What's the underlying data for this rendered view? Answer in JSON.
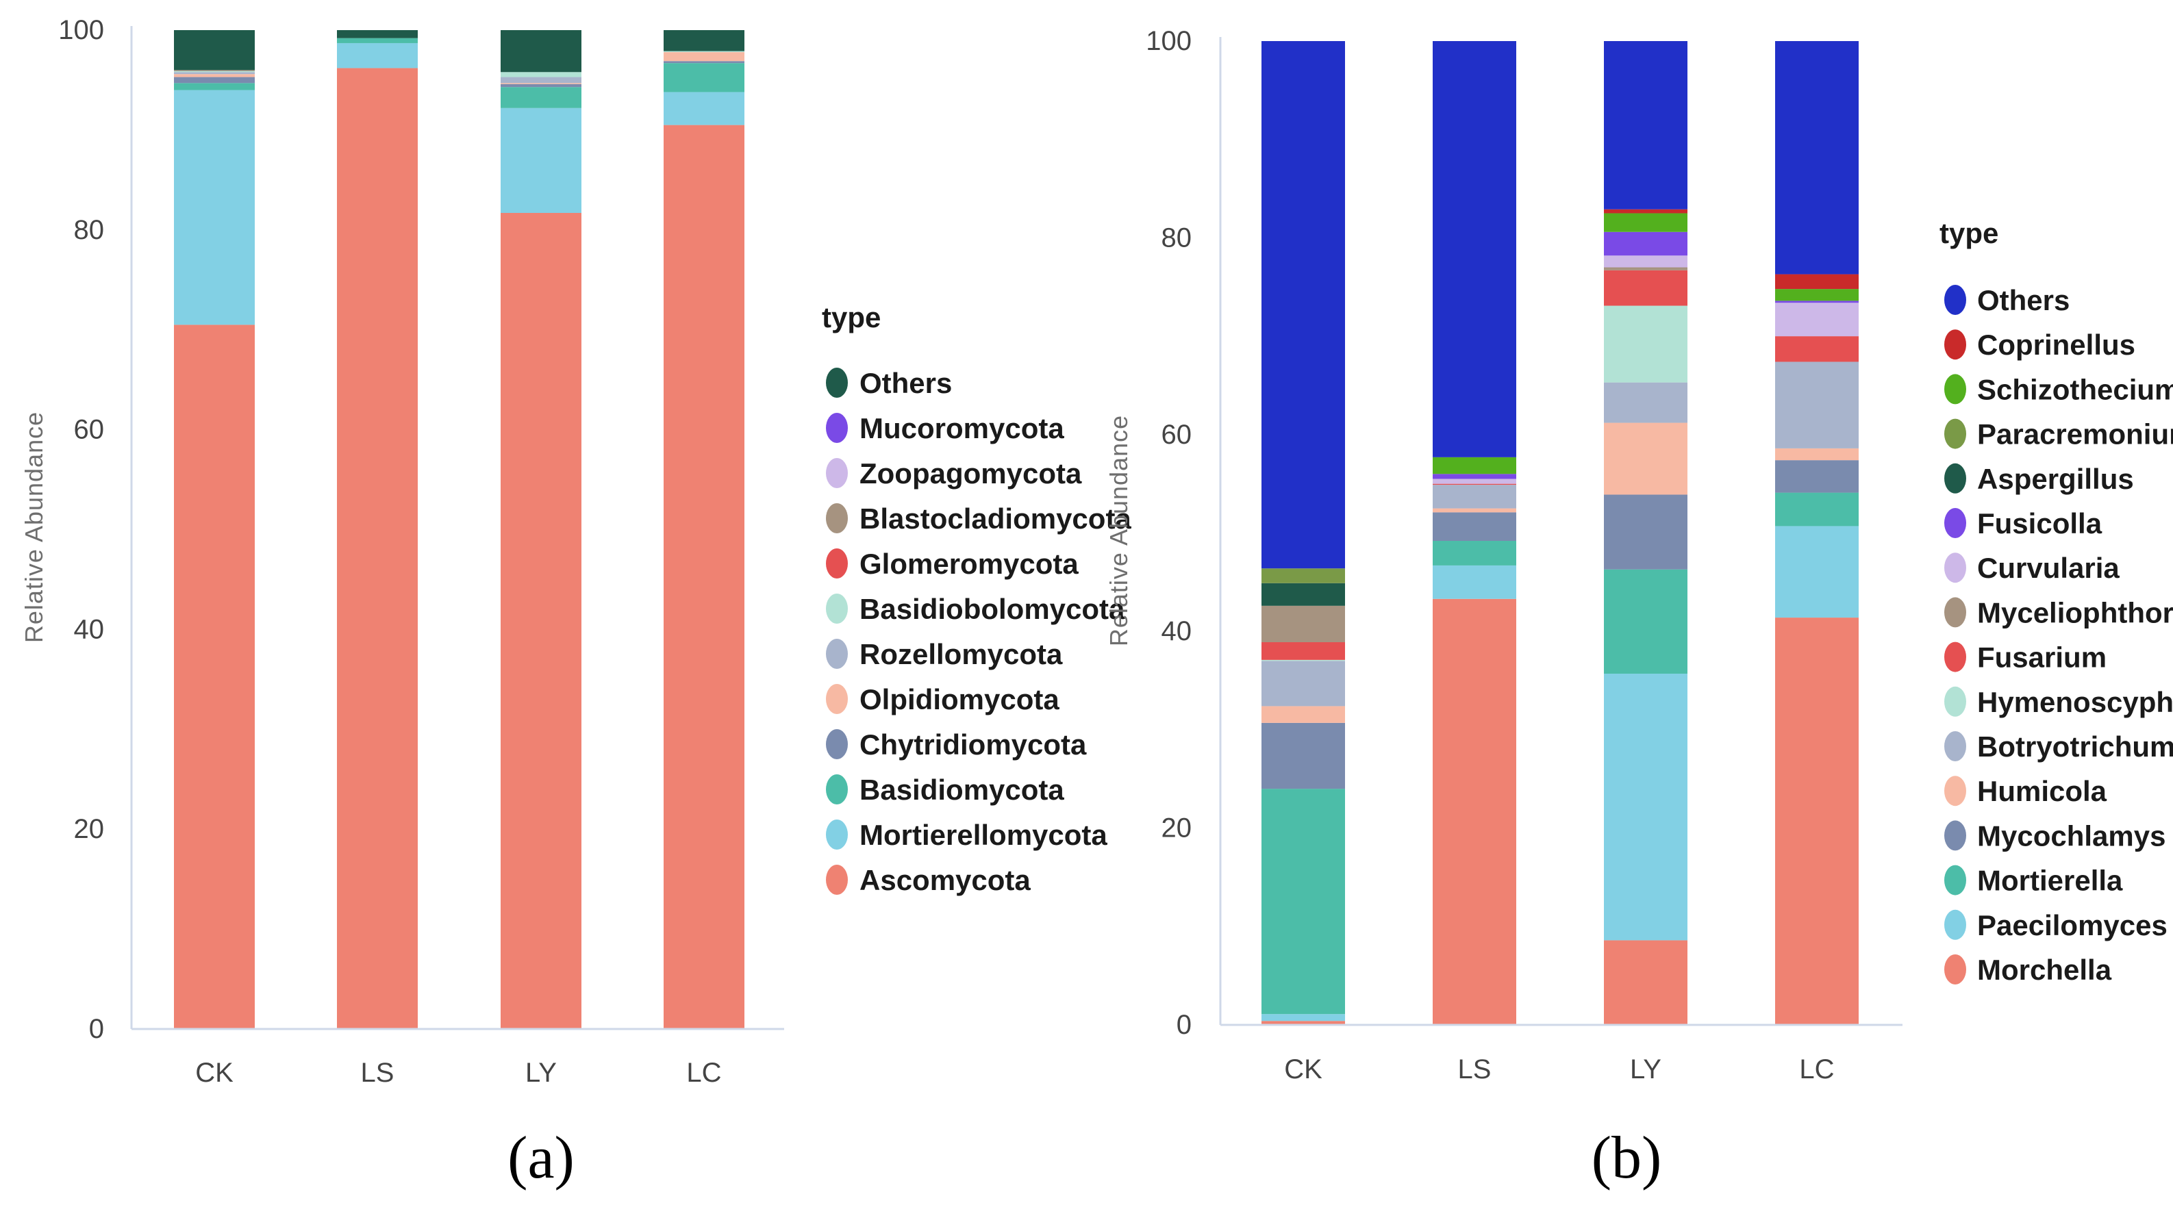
{
  "colors": {
    "axis": "#cfd8e8",
    "tick_text": "#444444",
    "label_text": "#6e6e6e",
    "legend_text": "#1a1a1a"
  },
  "chart_data": [
    {
      "id": "a",
      "type": "bar",
      "stacked": true,
      "caption": "(a)",
      "ylabel": "Relative Abundance",
      "xlabel": "",
      "ylim": [
        0,
        100
      ],
      "yticks": [
        0,
        20,
        40,
        60,
        80,
        100
      ],
      "categories": [
        "CK",
        "LS",
        "LY",
        "LC"
      ],
      "legend_title": "type",
      "legend_position": "right",
      "series": [
        {
          "name": "Ascomycota",
          "color": "#ef8272",
          "values": [
            70.5,
            96.2,
            81.7,
            90.5
          ]
        },
        {
          "name": "Mortierellomycota",
          "color": "#82d0e4",
          "values": [
            23.5,
            2.5,
            10.5,
            3.3
          ]
        },
        {
          "name": "Basidiomycota",
          "color": "#4cbda8",
          "values": [
            0.7,
            0.5,
            2.1,
            2.9
          ]
        },
        {
          "name": "Chytridiomycota",
          "color": "#7a8bae",
          "values": [
            0.6,
            0.0,
            0.3,
            0.2
          ]
        },
        {
          "name": "Olpidiomycota",
          "color": "#f7b9a3",
          "values": [
            0.3,
            0.0,
            0.1,
            0.9
          ]
        },
        {
          "name": "Rozellomycota",
          "color": "#a8b4cc",
          "values": [
            0.2,
            0.0,
            0.6,
            0.0
          ]
        },
        {
          "name": "Basidiobolomycota",
          "color": "#b2e2d5",
          "values": [
            0.1,
            0.0,
            0.5,
            0.1
          ]
        },
        {
          "name": "Glomeromycota",
          "color": "#e55051",
          "values": [
            0.0,
            0.0,
            0.0,
            0.0
          ]
        },
        {
          "name": "Blastocladiomycota",
          "color": "#a69380",
          "values": [
            0.1,
            0.0,
            0.0,
            0.0
          ]
        },
        {
          "name": "Zoopagomycota",
          "color": "#cdb8e8",
          "values": [
            0.0,
            0.0,
            0.0,
            0.0
          ]
        },
        {
          "name": "Mucoromycota",
          "color": "#7a4ae6",
          "values": [
            0.0,
            0.0,
            0.0,
            0.0
          ]
        },
        {
          "name": "Others",
          "color": "#1f5a4a",
          "values": [
            4.0,
            0.8,
            4.2,
            2.1
          ]
        }
      ]
    },
    {
      "id": "b",
      "type": "bar",
      "stacked": true,
      "caption": "(b)",
      "ylabel": "Relative Abundance",
      "xlabel": "",
      "ylim": [
        0,
        100
      ],
      "yticks": [
        0,
        20,
        40,
        60,
        80,
        100
      ],
      "categories": [
        "CK",
        "LS",
        "LY",
        "LC"
      ],
      "legend_title": "type",
      "legend_position": "right",
      "series": [
        {
          "name": "Morchella",
          "color": "#ef8272",
          "values": [
            0.4,
            43.3,
            8.6,
            41.4
          ]
        },
        {
          "name": "Paecilomyces",
          "color": "#82d0e4",
          "values": [
            0.7,
            3.4,
            27.1,
            9.3
          ]
        },
        {
          "name": "Mortierella",
          "color": "#4cbda8",
          "values": [
            22.9,
            2.5,
            10.6,
            3.4
          ]
        },
        {
          "name": "Mycochlamys",
          "color": "#7a8bae",
          "values": [
            6.7,
            2.9,
            7.6,
            3.3
          ]
        },
        {
          "name": "Humicola",
          "color": "#f7b9a3",
          "values": [
            1.7,
            0.4,
            7.3,
            1.2
          ]
        },
        {
          "name": "Botryotrichum",
          "color": "#a8b4cc",
          "values": [
            4.6,
            2.4,
            4.1,
            8.8
          ]
        },
        {
          "name": "Hymenoscyphus",
          "color": "#b2e2d5",
          "values": [
            0.1,
            0.0,
            7.8,
            0.0
          ]
        },
        {
          "name": "Fusarium",
          "color": "#e55051",
          "values": [
            1.8,
            0.1,
            3.6,
            2.6
          ]
        },
        {
          "name": "Myceliophthora",
          "color": "#a69380",
          "values": [
            3.7,
            0.0,
            0.3,
            0.0
          ]
        },
        {
          "name": "Curvularia",
          "color": "#cdb8e8",
          "values": [
            0.0,
            0.5,
            1.2,
            3.4
          ]
        },
        {
          "name": "Fusicolla",
          "color": "#7a4ae6",
          "values": [
            0.0,
            0.5,
            2.4,
            0.2
          ]
        },
        {
          "name": "Aspergillus",
          "color": "#1f5a4a",
          "values": [
            2.3,
            0.0,
            0.0,
            0.0
          ]
        },
        {
          "name": "Paracremonium",
          "color": "#7a9a47",
          "values": [
            1.5,
            0.0,
            0.0,
            0.0
          ]
        },
        {
          "name": "Schizothecium",
          "color": "#53b01e",
          "values": [
            0.0,
            1.7,
            1.9,
            1.2
          ]
        },
        {
          "name": "Coprinellus",
          "color": "#c92a2a",
          "values": [
            0.0,
            0.0,
            0.4,
            1.5
          ]
        },
        {
          "name": "Others",
          "color": "#2130c8",
          "values": [
            53.6,
            42.3,
            17.1,
            23.7
          ]
        }
      ]
    }
  ]
}
